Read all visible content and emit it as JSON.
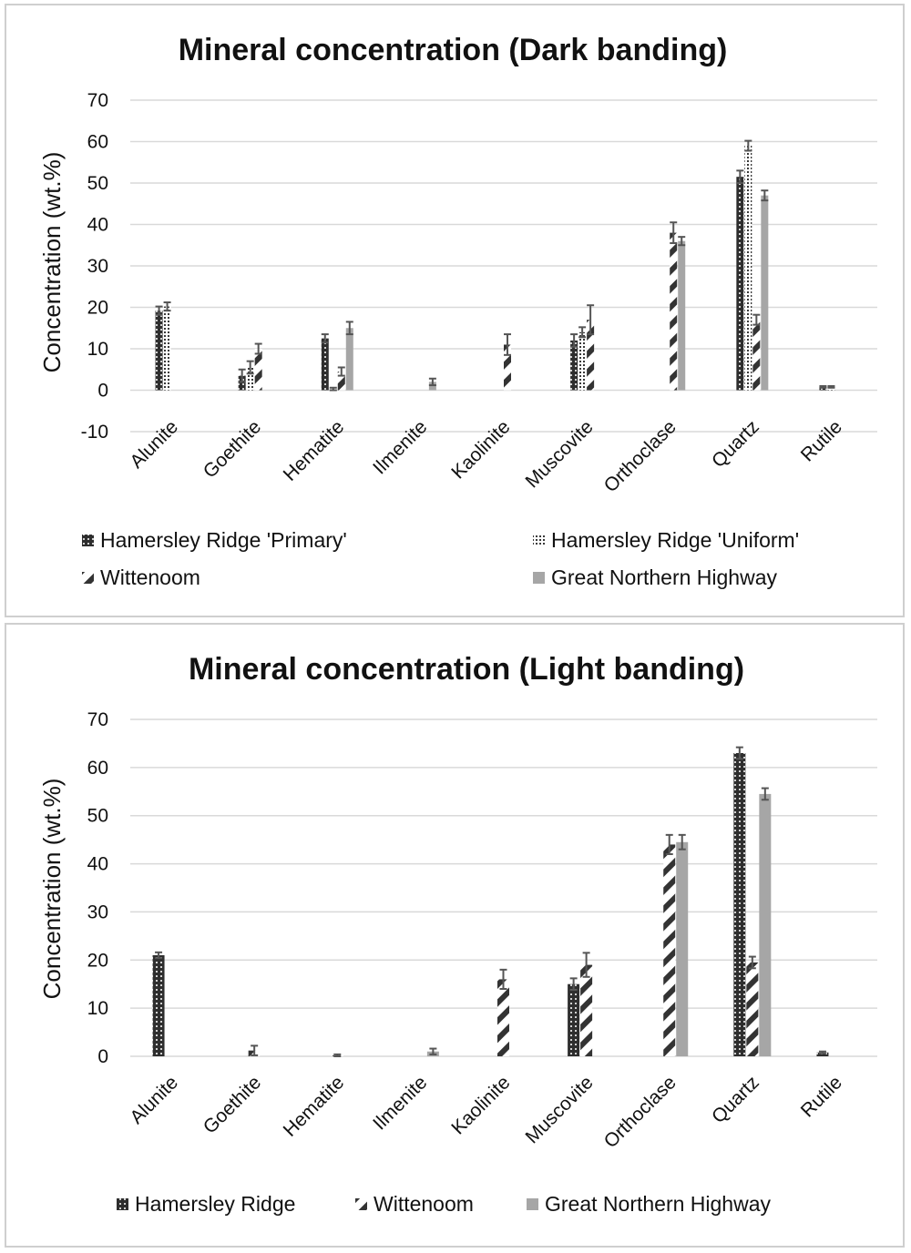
{
  "chart_data": [
    {
      "type": "bar",
      "title": "Mineral concentration (Dark banding)",
      "xlabel": "",
      "ylabel": "Concentration (wt.%)",
      "ylim": [
        -10,
        70
      ],
      "yticks": [
        "70",
        "60",
        "50",
        "40",
        "30",
        "20",
        "10",
        "0",
        "-10"
      ],
      "grid": true,
      "legend_position": "bottom",
      "categories": [
        "Alunite",
        "Goethite",
        "Hematite",
        "Ilmenite",
        "Kaolinite",
        "Muscovite",
        "Orthoclase",
        "Quartz",
        "Rutile"
      ],
      "series": [
        {
          "name": "Hamersley Ridge 'Primary'",
          "pattern": "dots-dark",
          "values": [
            19.2,
            3.5,
            12.5,
            0,
            0,
            12,
            0,
            51.5,
            0.8
          ],
          "errors": [
            1,
            1.5,
            1,
            0,
            0,
            1.5,
            0,
            1.5,
            0.2
          ]
        },
        {
          "name": "Hamersley Ridge 'Uniform'",
          "pattern": "dots-light",
          "values": [
            20.2,
            5.5,
            0.3,
            0,
            0,
            14,
            0,
            59,
            0.8
          ],
          "errors": [
            1,
            1.5,
            0.3,
            0,
            0,
            1.2,
            0,
            1.2,
            0.2
          ]
        },
        {
          "name": "Wittenoom",
          "pattern": "diagonal",
          "values": [
            0,
            10,
            4.5,
            0,
            11,
            17,
            38,
            17,
            0
          ],
          "errors": [
            0,
            1.2,
            1,
            0,
            2.5,
            3.5,
            2.5,
            1.2,
            0
          ]
        },
        {
          "name": "Great Northern Highway",
          "pattern": "solid",
          "values": [
            0,
            0,
            15,
            2,
            0,
            0,
            36,
            47,
            0
          ],
          "errors": [
            0,
            0,
            1.5,
            0.8,
            0,
            0,
            1,
            1.2,
            0
          ]
        }
      ]
    },
    {
      "type": "bar",
      "title": "Mineral concentration (Light banding)",
      "xlabel": "",
      "ylabel": "Concentration (wt.%)",
      "ylim": [
        0,
        70
      ],
      "yticks": [
        "70",
        "60",
        "50",
        "40",
        "30",
        "20",
        "10",
        "0"
      ],
      "grid": true,
      "legend_position": "bottom",
      "categories": [
        "Alunite",
        "Goethite",
        "Hematite",
        "Ilmenite",
        "Kaolinite",
        "Muscovite",
        "Orthoclase",
        "Quartz",
        "Rutile"
      ],
      "series": [
        {
          "name": "Hamersley Ridge",
          "pattern": "dots-dark",
          "values": [
            21,
            0,
            0,
            0,
            0,
            15,
            0,
            63,
            0.8
          ],
          "errors": [
            0.6,
            0,
            0,
            0,
            0,
            1.2,
            0,
            1.2,
            0.2
          ]
        },
        {
          "name": "Wittenoom",
          "pattern": "diagonal",
          "values": [
            0,
            1.2,
            0.2,
            0,
            16,
            19,
            44,
            19.5,
            0
          ],
          "errors": [
            0,
            1,
            0.2,
            0,
            2,
            2.5,
            2,
            1.2,
            0
          ]
        },
        {
          "name": "Great Northern Highway",
          "pattern": "solid",
          "values": [
            0,
            0,
            0,
            1,
            0,
            0,
            44.5,
            54.5,
            0
          ],
          "errors": [
            0,
            0,
            0,
            0.6,
            0,
            0,
            1.5,
            1.2,
            0
          ]
        }
      ]
    }
  ]
}
